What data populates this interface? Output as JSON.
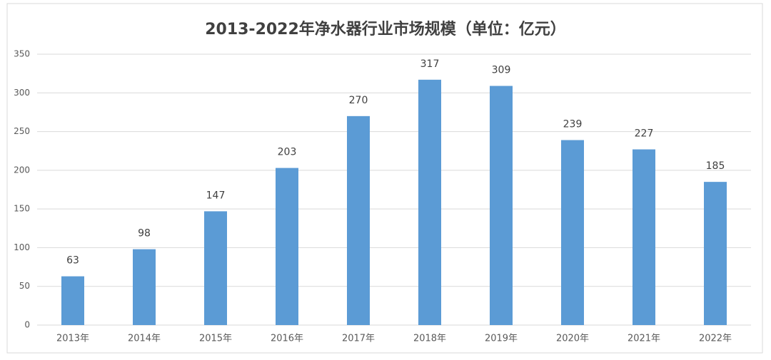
{
  "chart_data": {
    "type": "bar",
    "title": "2013-2022年净水器行业市场规模（单位：亿元）",
    "categories": [
      "2013年",
      "2014年",
      "2015年",
      "2016年",
      "2017年",
      "2018年",
      "2019年",
      "2020年",
      "2021年",
      "2022年"
    ],
    "values": [
      63,
      98,
      147,
      203,
      270,
      317,
      309,
      239,
      227,
      185
    ],
    "color": "#5b9bd5",
    "ylim": [
      0,
      350
    ],
    "yticks": [
      0,
      50,
      100,
      150,
      200,
      250,
      300,
      350
    ],
    "grid": true
  }
}
